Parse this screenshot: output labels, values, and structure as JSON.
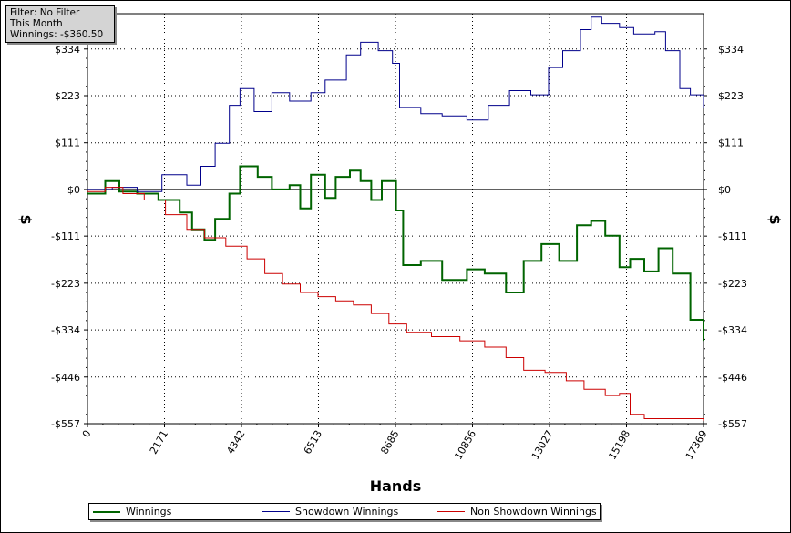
{
  "info_box": {
    "filter": "Filter: No Filter",
    "period": "This Month",
    "winnings": "Winnings: -$360.50"
  },
  "legend": {
    "winnings": "Winnings",
    "showdown": "Showdown Winnings",
    "non_showdown": "Non Showdown Winnings"
  },
  "colors": {
    "winnings": "#006400",
    "showdown": "#00008b",
    "non_showdown": "#cc0000"
  },
  "chart_data": {
    "type": "line",
    "xlabel": "Hands",
    "ylabel_left": "$",
    "ylabel_right": "$",
    "xlim": [
      0,
      17369
    ],
    "ylim": [
      -557,
      418
    ],
    "x_ticks": [
      0,
      2171,
      4342,
      6513,
      8685,
      10856,
      13027,
      15198,
      17369
    ],
    "x_tick_labels": [
      "0",
      "2171",
      "4342",
      "6513",
      "8685",
      "10856",
      "13027",
      "15198",
      "17369"
    ],
    "y_ticks": [
      -557,
      -446,
      -334,
      -223,
      -111,
      0,
      111,
      223,
      334
    ],
    "y_tick_labels": [
      "-$557",
      "-$446",
      "-$334",
      "-$223",
      "-$111",
      "$0",
      "$111",
      "$223",
      "$334"
    ],
    "grid": true,
    "legend_position": "bottom",
    "series": [
      {
        "name": "Winnings",
        "x": [
          0,
          500,
          900,
          1400,
          2000,
          2600,
          2950,
          3300,
          3600,
          4000,
          4300,
          4800,
          5200,
          5700,
          6000,
          6300,
          6700,
          7000,
          7400,
          7700,
          8000,
          8300,
          8700,
          8900,
          9400,
          10000,
          10700,
          11200,
          11800,
          12300,
          12800,
          13300,
          13800,
          14200,
          14600,
          15000,
          15300,
          15700,
          16100,
          16500,
          17000,
          17369
        ],
        "y": [
          -10,
          20,
          -5,
          -10,
          -25,
          -55,
          -95,
          -120,
          -70,
          -10,
          55,
          30,
          0,
          10,
          -45,
          35,
          -20,
          30,
          45,
          20,
          -25,
          20,
          -50,
          -180,
          -170,
          -215,
          -190,
          -200,
          -245,
          -170,
          -130,
          -170,
          -85,
          -75,
          -110,
          -185,
          -165,
          -195,
          -140,
          -200,
          -310,
          -360
        ]
      },
      {
        "name": "Showdown Winnings",
        "x": [
          0,
          700,
          1400,
          2100,
          2800,
          3200,
          3600,
          4000,
          4300,
          4700,
          5200,
          5700,
          6300,
          6700,
          7300,
          7700,
          8200,
          8600,
          8800,
          9400,
          10000,
          10700,
          11300,
          11900,
          12500,
          13000,
          13400,
          13900,
          14200,
          14500,
          15000,
          15400,
          16000,
          16300,
          16700,
          17000,
          17369
        ],
        "y": [
          0,
          5,
          -5,
          35,
          10,
          55,
          110,
          200,
          240,
          185,
          230,
          210,
          230,
          260,
          320,
          350,
          330,
          300,
          195,
          180,
          175,
          165,
          200,
          235,
          225,
          290,
          330,
          380,
          410,
          395,
          385,
          370,
          375,
          330,
          240,
          225,
          195
        ]
      },
      {
        "name": "Non Showdown Winnings",
        "x": [
          0,
          500,
          1000,
          1600,
          2200,
          2800,
          3300,
          3900,
          4500,
          5000,
          5500,
          6000,
          6500,
          7000,
          7500,
          8000,
          8500,
          9000,
          9700,
          10500,
          11200,
          11800,
          12300,
          12900,
          13500,
          14000,
          14600,
          15000,
          15300,
          15700,
          16200,
          16700,
          17369
        ],
        "y": [
          -5,
          5,
          -10,
          -25,
          -60,
          -95,
          -115,
          -135,
          -165,
          -200,
          -225,
          -245,
          -255,
          -265,
          -275,
          -295,
          -320,
          -340,
          -350,
          -360,
          -375,
          -400,
          -430,
          -435,
          -455,
          -475,
          -490,
          -485,
          -535,
          -545,
          -545,
          -545,
          -550
        ]
      }
    ]
  }
}
